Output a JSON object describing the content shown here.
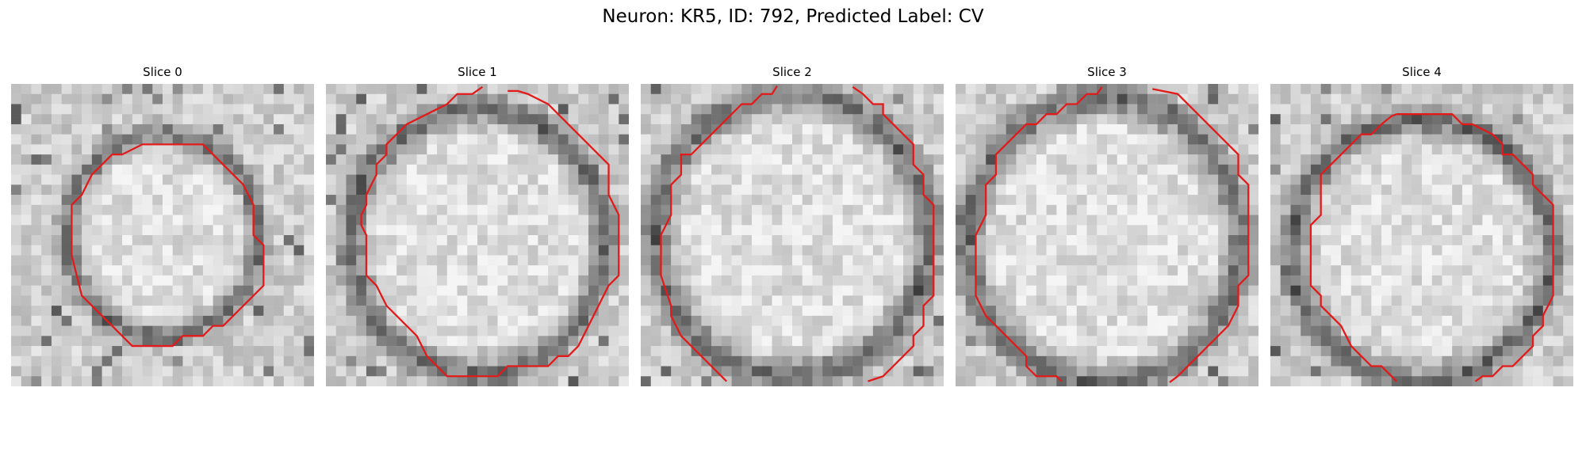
{
  "figure": {
    "title": "Neuron: KR5, ID: 792, Predicted Label: CV"
  },
  "overlay_color": "#e21a1a",
  "panels": [
    {
      "title": "Slice 0",
      "seed": 11,
      "ring": [
        0.5,
        0.5,
        0.3,
        0.32
      ]
    },
    {
      "title": "Slice 1",
      "seed": 23,
      "ring": [
        0.5,
        0.52,
        0.4,
        0.42
      ]
    },
    {
      "title": "Slice 2",
      "seed": 37,
      "ring": [
        0.5,
        0.5,
        0.43,
        0.45
      ]
    },
    {
      "title": "Slice 3",
      "seed": 41,
      "ring": [
        0.49,
        0.52,
        0.43,
        0.45
      ]
    },
    {
      "title": "Slice 4",
      "seed": 53,
      "ring": [
        0.5,
        0.55,
        0.41,
        0.41
      ]
    }
  ]
}
